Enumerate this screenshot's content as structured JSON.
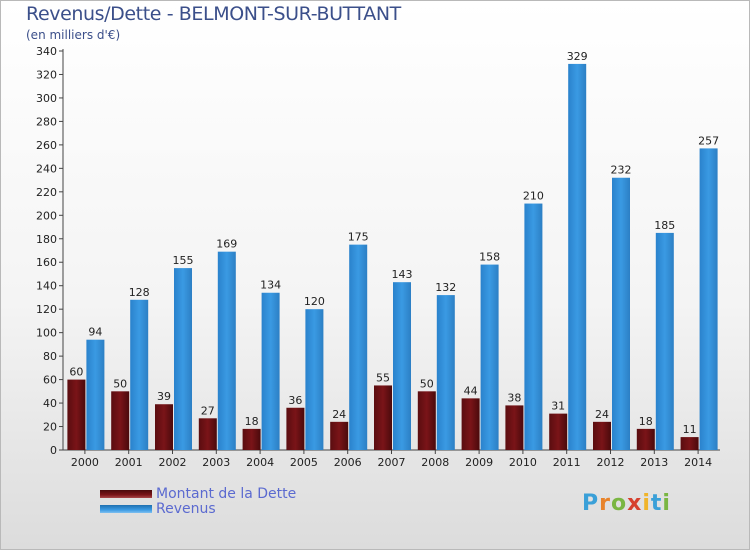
{
  "header": {
    "title": "Revenus/Dette - BELMONT-SUR-BUTTANT",
    "subtitle": "(en milliers d'€)"
  },
  "legend": {
    "debt": "Montant de la Dette",
    "revenue": "Revenus"
  },
  "logo": {
    "text": "Proxiti"
  },
  "colors": {
    "debt_bar": "#7a1418",
    "revenue_bar": "#3a9ae3",
    "axis": "#444444",
    "grid_text": "#222222"
  },
  "chart_data": {
    "type": "bar",
    "title": "Revenus/Dette - BELMONT-SUR-BUTTANT",
    "ylabel": "(en milliers d'€)",
    "xlabel": "",
    "ylim": [
      0,
      340
    ],
    "yticks": [
      0,
      20,
      40,
      60,
      80,
      100,
      120,
      140,
      160,
      180,
      200,
      220,
      240,
      260,
      280,
      300,
      320,
      340
    ],
    "categories": [
      "2000",
      "2001",
      "2002",
      "2003",
      "2004",
      "2005",
      "2006",
      "2007",
      "2008",
      "2009",
      "2010",
      "2011",
      "2012",
      "2013",
      "2014"
    ],
    "series": [
      {
        "name": "Montant de la Dette",
        "values": [
          60,
          50,
          39,
          27,
          18,
          36,
          24,
          55,
          50,
          44,
          38,
          31,
          24,
          18,
          11
        ]
      },
      {
        "name": "Revenus",
        "values": [
          94,
          128,
          155,
          169,
          134,
          120,
          175,
          143,
          132,
          158,
          210,
          329,
          232,
          185,
          257
        ]
      }
    ],
    "legend_position": "bottom-left"
  }
}
